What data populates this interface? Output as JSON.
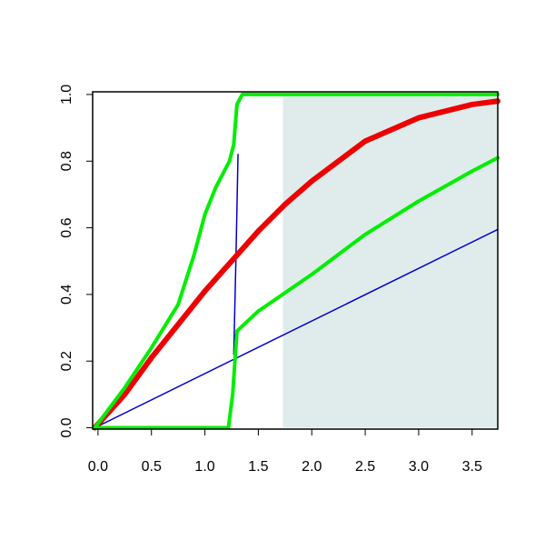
{
  "chart_data": {
    "type": "line",
    "xlim": [
      -0.05,
      3.74
    ],
    "ylim": [
      -0.004,
      1.008
    ],
    "xticks": [
      {
        "value": 0,
        "label": "0.0"
      },
      0.5,
      {
        "value": 1,
        "label": "1.0"
      },
      1.5,
      {
        "value": 2,
        "label": "2.0"
      },
      2.5,
      {
        "value": 3,
        "label": "3.0"
      },
      3.5
    ],
    "yticks": [
      {
        "value": 0,
        "label": "0.0"
      },
      0.2,
      0.4,
      0.6,
      0.8,
      {
        "value": 1,
        "label": "1.0"
      }
    ],
    "shaded_region": {
      "x": [
        1.73,
        3.74
      ],
      "y": [
        0,
        1
      ],
      "color": "#e0ecec"
    },
    "series": [
      {
        "color": "#0000cc",
        "width": 1.5,
        "x": [
          -0.03,
          3.74
        ],
        "values": [
          0,
          0.595
        ]
      },
      {
        "color": "#0000cc",
        "width": 1.5,
        "x": [
          1.27,
          1.29,
          1.31
        ],
        "values": [
          0.22,
          0.5,
          0.82
        ]
      },
      {
        "color": "#ee0000",
        "width": 6,
        "x": [
          -0.03,
          0.25,
          0.5,
          0.75,
          1,
          1.25,
          1.5,
          1.75,
          2,
          2.5,
          3,
          3.5,
          3.74
        ],
        "values": [
          0,
          0.1,
          0.21,
          0.31,
          0.41,
          0.5,
          0.59,
          0.67,
          0.74,
          0.86,
          0.93,
          0.97,
          0.98
        ]
      },
      {
        "color": "#00ee00",
        "width": 4,
        "x": [
          -0.03,
          0.25,
          0.5,
          0.75,
          0.9,
          1.0,
          1.1,
          1.23,
          1.27,
          1.3,
          1.35,
          3.74
        ],
        "values": [
          0,
          0.12,
          0.24,
          0.37,
          0.52,
          0.64,
          0.72,
          0.8,
          0.85,
          0.97,
          1.0,
          1.0
        ]
      },
      {
        "color": "#00ee00",
        "width": 4,
        "x": [
          -0.03,
          1.22,
          1.26,
          1.3,
          1.5,
          2,
          2.5,
          3,
          3.5,
          3.74
        ],
        "values": [
          0,
          0,
          0.1,
          0.29,
          0.35,
          0.46,
          0.58,
          0.68,
          0.77,
          0.81
        ]
      }
    ]
  }
}
